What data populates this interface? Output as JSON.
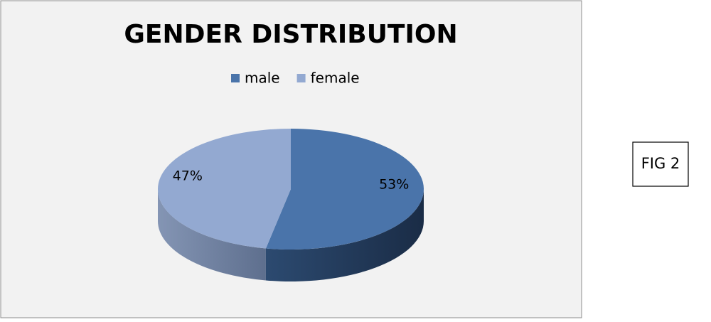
{
  "chart_data": {
    "type": "pie",
    "title": "GENDER DISTRIBUTION",
    "categories": [
      "male",
      "female"
    ],
    "values": [
      53,
      47
    ],
    "value_labels": [
      "53%",
      "47%"
    ],
    "colors": [
      "#4a74aa",
      "#93a9d1"
    ],
    "legend": "top"
  },
  "figure_label": "FIG 2"
}
